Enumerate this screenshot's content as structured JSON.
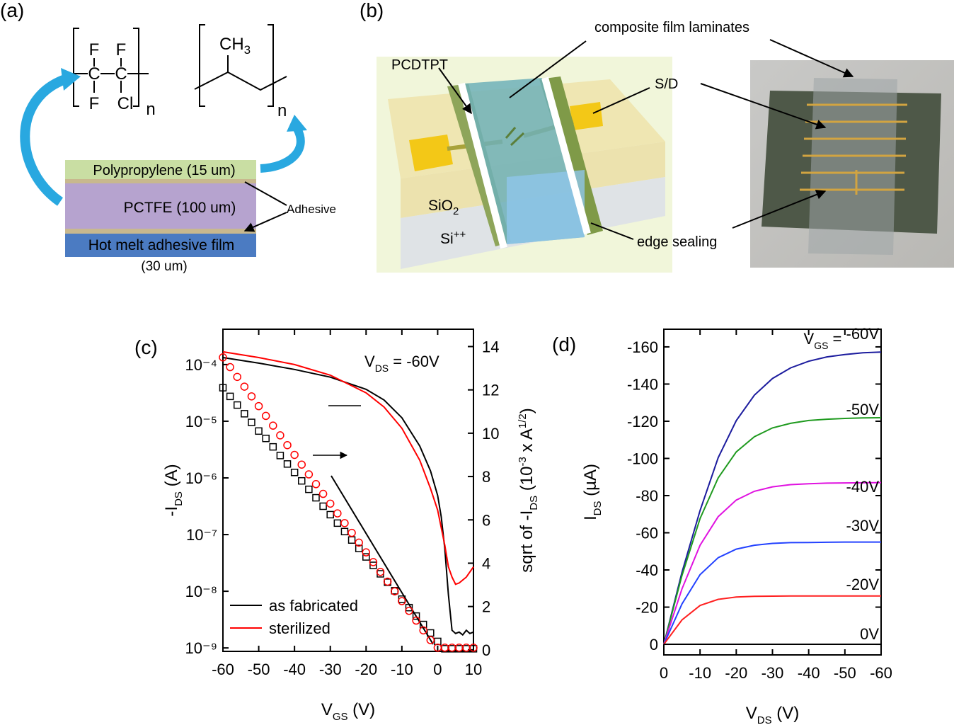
{
  "panels": {
    "a": "(a)",
    "b": "(b)",
    "c": "(c)",
    "d": "(d)"
  },
  "structures": {
    "pctfe": {
      "atoms": [
        "F",
        "F",
        "C",
        "C",
        "F",
        "Cl"
      ],
      "repeat": "n"
    },
    "polypropylene": {
      "methyl": [
        "CH",
        "3"
      ],
      "repeat": "n"
    }
  },
  "layers": [
    "Polypropylene (15 um)",
    "PCTFE (100 um)",
    "Hot melt adhesive film"
  ],
  "layer_note": "(30 um)",
  "adhesive": "Adhesive",
  "schematic": {
    "laminates": "composite film laminates",
    "pcdtpt": "PCDTPT",
    "sd": "S/D",
    "sio2": [
      "SiO",
      "2"
    ],
    "si": [
      "Si",
      "++"
    ],
    "edge": "edge sealing"
  },
  "chart_data": [
    {
      "type": "line",
      "xlim": [
        -60,
        10
      ],
      "xticks": [
        -60,
        -50,
        -40,
        -30,
        -20,
        -10,
        0,
        10
      ],
      "ylog": true,
      "ylim": [
        8.7e-10,
        0.00042
      ],
      "yticks": [
        {
          "value": 1e-09,
          "label": "10⁻⁹"
        },
        {
          "value": 1e-08,
          "label": "10⁻⁸"
        },
        {
          "value": 1e-07,
          "label": "10⁻⁷"
        },
        {
          "value": 1e-06,
          "label": "10⁻⁶"
        },
        {
          "value": 1e-05,
          "label": "10⁻⁵"
        },
        {
          "value": 0.0001,
          "label": "10⁻⁴"
        }
      ],
      "y2lim": [
        -0.07,
        14.8
      ],
      "y2ticks": [
        0,
        2,
        4,
        6,
        8,
        10,
        12,
        14
      ],
      "xlabel": [
        "V",
        "GS",
        " (V)"
      ],
      "ylabel": [
        "-I",
        "DS",
        " (A)"
      ],
      "y2label": [
        "sqrt of -I",
        "DS",
        " (10",
        "-3",
        " x A",
        "1/2",
        ")"
      ],
      "annotation": [
        "V",
        "DS",
        " = -60V"
      ],
      "legend": "lower left",
      "series": [
        {
          "name": "as fabricated",
          "color": "#000000",
          "x": [
            -60,
            -50,
            -40,
            -30,
            -20,
            -15,
            -10,
            -5,
            -2,
            0,
            1,
            2,
            3,
            4,
            5,
            6,
            7,
            8,
            9,
            10
          ],
          "values": [
            0.000133,
            0.000106,
            8.2e-05,
            6e-05,
            3.65e-05,
            2.37e-05,
            1.15e-05,
            3.65e-06,
            1.33e-06,
            4.9e-07,
            2.05e-07,
            5.6e-08,
            8.7e-09,
            2.05e-09,
            1.8e-09,
            1.9e-09,
            1.7e-09,
            2.05e-09,
            1.8e-09,
            1.9e-09
          ]
        },
        {
          "name": "sterilized",
          "color": "#ff0000",
          "x": [
            -60,
            -50,
            -40,
            -30,
            -20,
            -15,
            -10,
            -5,
            -2,
            0,
            2,
            3,
            4,
            5,
            6,
            8,
            10
          ],
          "values": [
            0.000168,
            0.000133,
            0.0001,
            6.5e-05,
            3.16e-05,
            1.78e-05,
            7.5e-06,
            2.05e-06,
            6.5e-07,
            2.7e-07,
            6.5e-08,
            2.7e-08,
            1.78e-08,
            1.33e-08,
            1.4e-08,
            1.78e-08,
            2.7e-08
          ]
        },
        {
          "color": "#000000",
          "marker": "square",
          "axis": "y2",
          "x": [
            -60,
            -58,
            -56,
            -54,
            -52,
            -50,
            -48,
            -46,
            -44,
            -42,
            -40,
            -38,
            -36,
            -34,
            -32,
            -30,
            -28,
            -26,
            -24,
            -22,
            -20,
            -18,
            -16,
            -14,
            -12,
            -10,
            -8,
            -6,
            -4,
            -2,
            0,
            2,
            4,
            6,
            8,
            10
          ],
          "values": [
            12.1,
            11.7,
            11.3,
            10.9,
            10.5,
            10.1,
            9.76,
            9.37,
            8.97,
            8.58,
            8.19,
            7.8,
            7.41,
            7.02,
            6.63,
            6.24,
            5.85,
            5.46,
            5.07,
            4.68,
            4.29,
            3.9,
            3.51,
            3.12,
            2.73,
            2.34,
            1.95,
            1.56,
            1.17,
            0.78,
            0.39,
            0.05,
            0.05,
            0.05,
            0.05,
            0.05
          ]
        },
        {
          "color": "#ff0000",
          "marker": "circle",
          "axis": "y2",
          "x": [
            -60,
            -58,
            -56,
            -54,
            -52,
            -50,
            -48,
            -46,
            -44,
            -42,
            -40,
            -38,
            -36,
            -34,
            -32,
            -30,
            -28,
            -26,
            -24,
            -22,
            -20,
            -18,
            -16,
            -14,
            -12,
            -10,
            -8,
            -6,
            -4,
            -2,
            0,
            2,
            4,
            6,
            8,
            10
          ],
          "values": [
            13.5,
            13.05,
            12.6,
            12.15,
            11.7,
            11.25,
            10.8,
            10.35,
            9.9,
            9.45,
            9.0,
            8.55,
            8.1,
            7.65,
            7.2,
            6.75,
            6.3,
            5.85,
            5.4,
            4.95,
            4.5,
            4.05,
            3.6,
            3.15,
            2.7,
            2.25,
            1.8,
            1.35,
            0.9,
            0.45,
            0.1,
            0.1,
            0.1,
            0.1,
            0.1,
            0.1
          ]
        }
      ]
    },
    {
      "type": "line",
      "xlim": [
        0,
        -60
      ],
      "xticks": [
        0,
        -10,
        -20,
        -30,
        -40,
        -50,
        -60
      ],
      "ylim": [
        5.7,
        -169.5
      ],
      "yticks": [
        0,
        -20,
        -40,
        -60,
        -80,
        -100,
        -120,
        -140,
        -160
      ],
      "xlabel": [
        "V",
        "DS",
        " (V)"
      ],
      "ylabel": [
        "I",
        "DS",
        " (µA)"
      ],
      "label_prefix": [
        "V",
        "GS",
        " = "
      ],
      "x": [
        0,
        -5,
        -10,
        -15,
        -20,
        -25,
        -30,
        -35,
        -40,
        -45,
        -50,
        -55,
        -60
      ],
      "series": [
        {
          "name": "-60V",
          "color": "#1c1c9e",
          "values": [
            0,
            -38.7,
            -72.0,
            -100.4,
            -120.3,
            -134.0,
            -143.0,
            -148.7,
            -152.3,
            -154.6,
            -155.9,
            -156.8,
            -157.2
          ]
        },
        {
          "name": "-50V",
          "color": "#1f9a1f",
          "values": [
            0,
            -37.0,
            -67.7,
            -89.5,
            -103.5,
            -111.7,
            -116.4,
            -118.9,
            -120.4,
            -121.1,
            -121.5,
            -121.8,
            -121.9
          ]
        },
        {
          "name": "-40V",
          "color": "#e012e0",
          "values": [
            0,
            -29.8,
            -53.3,
            -68.7,
            -77.6,
            -82.3,
            -84.7,
            -85.9,
            -86.4,
            -86.7,
            -86.8,
            -86.9,
            -87.0
          ]
        },
        {
          "name": "-30V",
          "color": "#2342ff",
          "values": [
            0,
            -21.7,
            -37.5,
            -46.6,
            -51.2,
            -53.3,
            -54.3,
            -54.7,
            -54.8,
            -54.9,
            -55.0,
            -55.0,
            -55.0
          ]
        },
        {
          "name": "-20V",
          "color": "#ff2020",
          "values": [
            0,
            -13.1,
            -20.9,
            -24.2,
            -25.4,
            -25.8,
            -25.9,
            -26.0,
            -26.0,
            -26.0,
            -26.0,
            -26.0,
            -26.0
          ]
        },
        {
          "name": "0V",
          "color": "#000000",
          "values": [
            0,
            0,
            0,
            0,
            0,
            0,
            0,
            0,
            0,
            0,
            0,
            0,
            0
          ]
        }
      ]
    }
  ]
}
